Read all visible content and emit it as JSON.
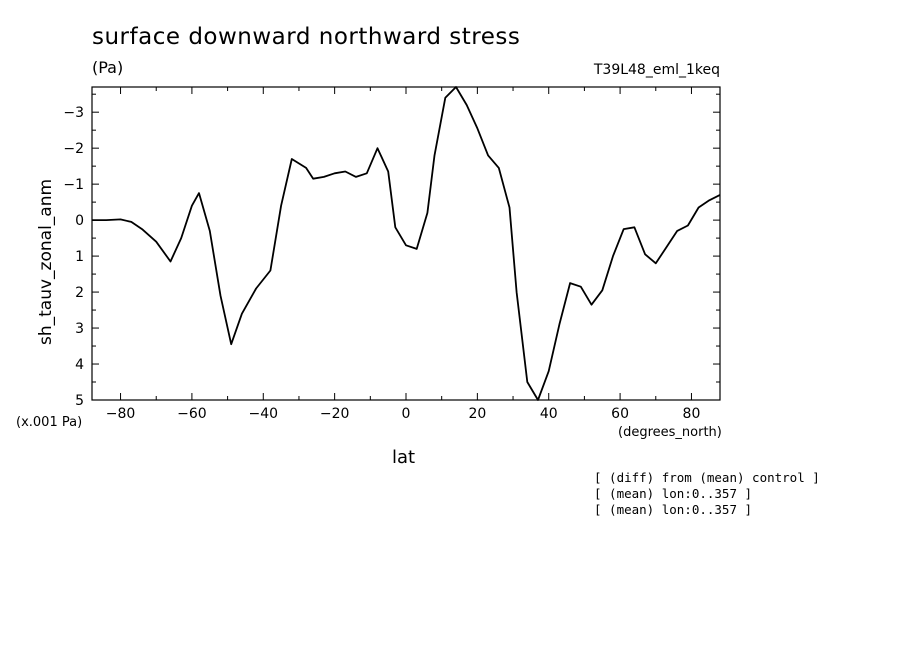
{
  "chart_data": {
    "type": "line",
    "title": "surface downward northward stress",
    "units": "(Pa)",
    "experiment": "T39L48_eml_1keq",
    "ylabel": "sh_tauv_zonal_anm",
    "xlabel": "lat",
    "xunits": "(degrees_north)",
    "scale_note": "(x.001 Pa)",
    "xlim": [
      -88,
      88
    ],
    "ylim": [
      5,
      -3.7
    ],
    "y_inverted": true,
    "x_ticks": [
      -80,
      -60,
      -40,
      -20,
      0,
      20,
      40,
      60,
      80
    ],
    "x_tick_labels": [
      "−80",
      "−60",
      "−40",
      "−20",
      "0",
      "20",
      "40",
      "60",
      "80"
    ],
    "y_ticks": [
      -3,
      -2,
      -1,
      0,
      1,
      2,
      3,
      4,
      5
    ],
    "y_tick_labels": [
      "−3",
      "−2",
      "−1",
      "0",
      "1",
      "2",
      "3",
      "4",
      "5"
    ],
    "grid": false,
    "notes": [
      "[ (diff) from (mean) control ]",
      "[ (mean) lon:0..357 ]",
      "[ (mean) lon:0..357 ]"
    ],
    "x": [
      -88,
      -84,
      -80,
      -77,
      -74,
      -70,
      -66,
      -63,
      -60,
      -58,
      -55,
      -52,
      -49,
      -46,
      -42,
      -38,
      -35,
      -32,
      -28,
      -26,
      -23,
      -20,
      -17,
      -14,
      -11,
      -8,
      -5,
      -3,
      0,
      3,
      6,
      8,
      11,
      14,
      17,
      20,
      23,
      26,
      29,
      31,
      34,
      37,
      40,
      43,
      46,
      49,
      52,
      55,
      58,
      61,
      64,
      67,
      70,
      73,
      76,
      79,
      82,
      85,
      88
    ],
    "values": [
      0,
      0,
      -0.02,
      0.05,
      0.25,
      0.6,
      1.15,
      0.5,
      -0.4,
      -0.75,
      0.3,
      2.1,
      3.45,
      2.6,
      1.9,
      1.4,
      -0.4,
      -1.7,
      -1.45,
      -1.15,
      -1.2,
      -1.3,
      -1.35,
      -1.2,
      -1.3,
      -2.0,
      -1.35,
      0.2,
      0.7,
      0.8,
      -0.2,
      -1.8,
      -3.4,
      -3.7,
      -3.2,
      -2.55,
      -1.8,
      -1.45,
      -0.35,
      2.0,
      4.5,
      5.0,
      4.2,
      2.9,
      1.75,
      1.85,
      2.35,
      1.95,
      1.0,
      0.25,
      0.2,
      0.95,
      1.2,
      0.75,
      0.3,
      0.15,
      -0.35,
      -0.55,
      -0.7
    ]
  }
}
